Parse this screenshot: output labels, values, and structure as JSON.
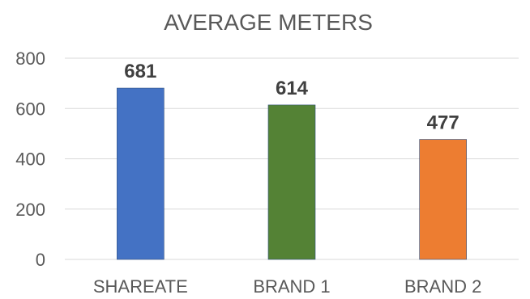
{
  "chart_data": {
    "type": "bar",
    "title": "AVERAGE METERS",
    "xlabel": "",
    "ylabel": "",
    "categories": [
      "SHAREATE",
      "BRAND 1",
      "BRAND 2"
    ],
    "values": [
      681,
      614,
      477
    ],
    "data_labels": [
      "681",
      "614",
      "477"
    ],
    "yticks": [
      "0",
      "200",
      "400",
      "600",
      "800"
    ],
    "ylim": [
      0,
      800
    ],
    "grid": true,
    "legend": "none",
    "colors": [
      "#4472c4",
      "#548235",
      "#ed7d31"
    ]
  }
}
